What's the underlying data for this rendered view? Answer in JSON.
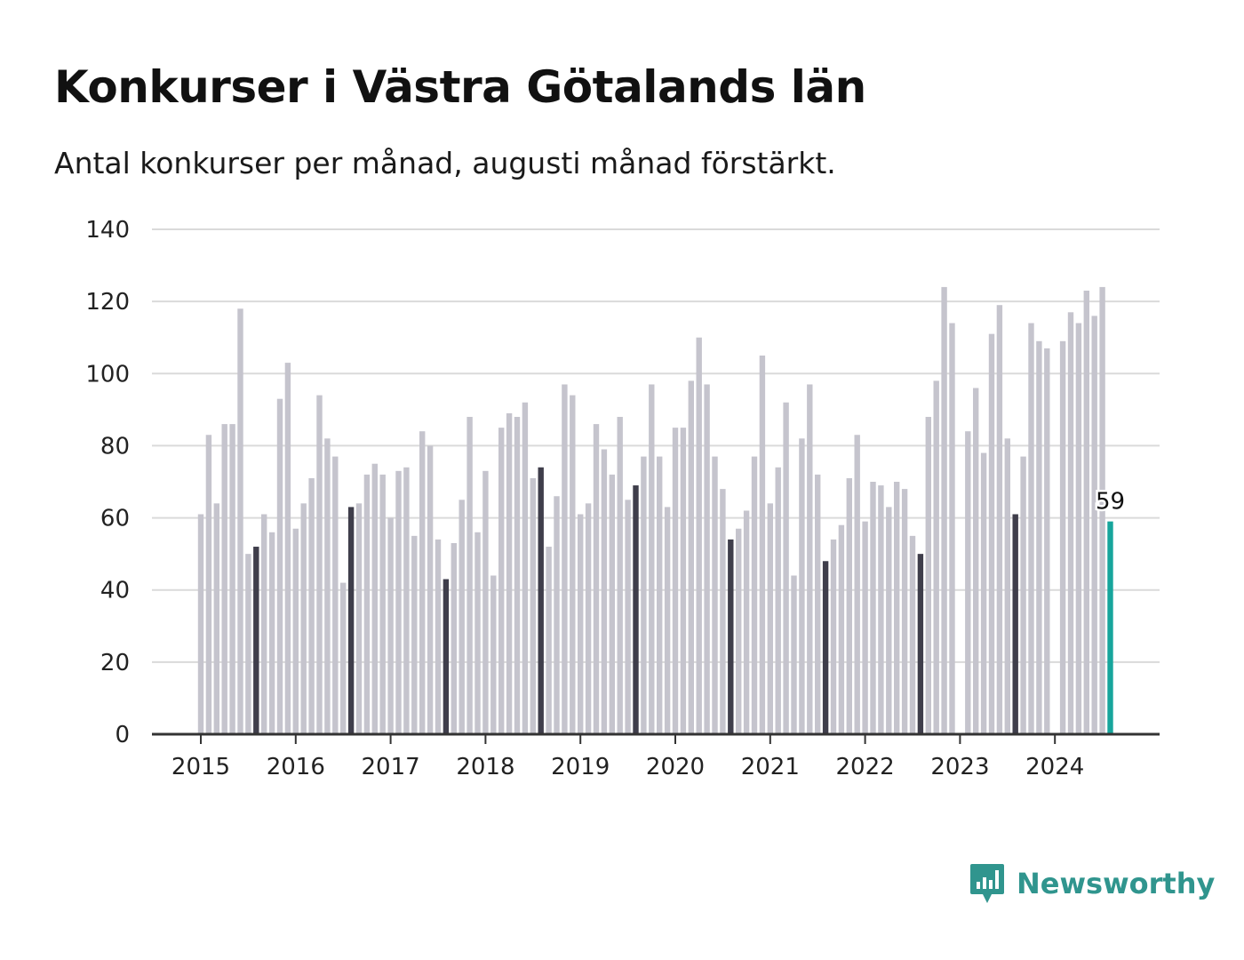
{
  "title": "Konkurser i Västra Götalands län",
  "subtitle": "Antal konkurser per månad, augusti månad förstärkt.",
  "brand": {
    "name": "Newsworthy",
    "icon": "bar-chart-speech-bubble-icon",
    "color": "#30958e"
  },
  "colors": {
    "bar": "#c5c4cd",
    "highlight": "#3f3e4b",
    "latest": "#17a59c",
    "grid": "#dadada",
    "axis": "#333333"
  },
  "chart_data": {
    "type": "bar",
    "title": "Konkurser i Västra Götalands län",
    "subtitle": "Antal konkurser per månad, augusti månad förstärkt.",
    "xlabel": "",
    "ylabel": "",
    "ylim": [
      0,
      140
    ],
    "yticks": [
      0,
      20,
      40,
      60,
      80,
      100,
      120,
      140
    ],
    "xticks": [
      "2015",
      "2016",
      "2017",
      "2018",
      "2019",
      "2020",
      "2021",
      "2022",
      "2023",
      "2024"
    ],
    "grid": true,
    "start": "2015-01",
    "highlight_month": "augusti",
    "annotation": {
      "label": "59",
      "month": "2024-08",
      "value": 59
    },
    "series": [
      {
        "year": "2015",
        "values": [
          61,
          83,
          64,
          86,
          86,
          118,
          50,
          52,
          61,
          56,
          93,
          103
        ]
      },
      {
        "year": "2016",
        "values": [
          57,
          64,
          71,
          94,
          82,
          77,
          42,
          63,
          64,
          72,
          75,
          72
        ]
      },
      {
        "year": "2017",
        "values": [
          60,
          73,
          74,
          55,
          84,
          80,
          54,
          43,
          53,
          65,
          88,
          56
        ]
      },
      {
        "year": "2018",
        "values": [
          73,
          44,
          85,
          89,
          88,
          92,
          71,
          74,
          52,
          66,
          97,
          94
        ]
      },
      {
        "year": "2019",
        "values": [
          61,
          64,
          86,
          79,
          72,
          88,
          65,
          69,
          77,
          97,
          77,
          63
        ]
      },
      {
        "year": "2020",
        "values": [
          85,
          85,
          98,
          110,
          97,
          77,
          68,
          54,
          57,
          62,
          77,
          105
        ]
      },
      {
        "year": "2021",
        "values": [
          64,
          74,
          92,
          44,
          82,
          97,
          72,
          48,
          54,
          58,
          71,
          83
        ]
      },
      {
        "year": "2022",
        "values": [
          59,
          70,
          69,
          63,
          70,
          68,
          55,
          50,
          88,
          98,
          124,
          114
        ]
      },
      {
        "year": "2023",
        "values": [
          0,
          84,
          96,
          78,
          111,
          119,
          82,
          61,
          77,
          114,
          109,
          107
        ]
      },
      {
        "year": "2024",
        "values": [
          0,
          109,
          117,
          114,
          123,
          116,
          124,
          59
        ]
      }
    ]
  }
}
